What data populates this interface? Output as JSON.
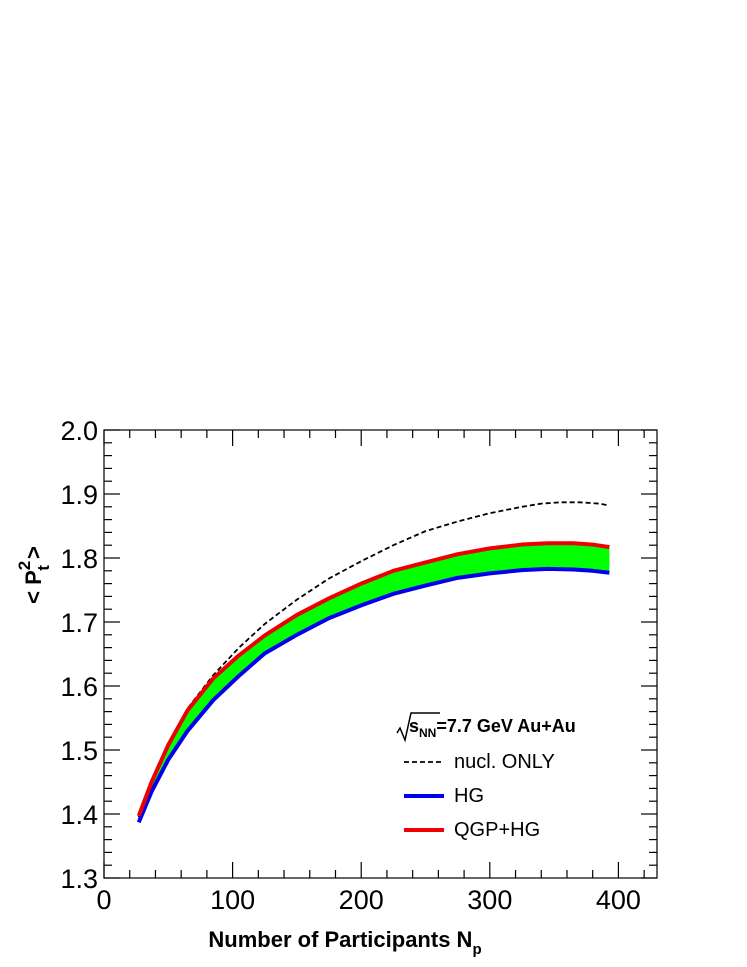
{
  "chart_data": {
    "type": "line",
    "title": "",
    "xlabel": "Number of Participants N",
    "xlabel_sub": "p",
    "ylabel_parts": [
      "< P",
      "2",
      "t",
      " >"
    ],
    "xlim": [
      0,
      430
    ],
    "ylim": [
      1.3,
      2.0
    ],
    "x_ticks": [
      "0",
      "100",
      "200",
      "300",
      "400"
    ],
    "y_ticks": [
      "1.3",
      "1.4",
      "1.5",
      "1.6",
      "1.7",
      "1.8",
      "1.9",
      "2.0"
    ],
    "grid": false,
    "legend_position": "bottom-right",
    "legend_header": {
      "s": "s",
      "sub": "NN",
      "rest": "=7.7 GeV Au+Au"
    },
    "series": [
      {
        "name": "nucl. ONLY",
        "style": "dashed",
        "color": "#000000",
        "x": [
          27,
          37,
          50,
          65,
          85,
          105,
          125,
          150,
          175,
          200,
          225,
          250,
          275,
          300,
          325,
          340,
          355,
          370,
          385,
          393
        ],
        "y": [
          1.395,
          1.45,
          1.51,
          1.565,
          1.617,
          1.66,
          1.697,
          1.735,
          1.768,
          1.795,
          1.82,
          1.842,
          1.857,
          1.87,
          1.88,
          1.885,
          1.887,
          1.887,
          1.885,
          1.882
        ]
      },
      {
        "name": "HG",
        "style": "solid",
        "color": "#0000ee",
        "x": [
          27,
          37,
          50,
          65,
          85,
          105,
          125,
          150,
          175,
          200,
          225,
          250,
          275,
          300,
          325,
          345,
          365,
          380,
          393
        ],
        "y": [
          1.387,
          1.435,
          1.485,
          1.53,
          1.578,
          1.616,
          1.651,
          1.68,
          1.706,
          1.726,
          1.744,
          1.757,
          1.769,
          1.776,
          1.781,
          1.783,
          1.782,
          1.78,
          1.777
        ]
      },
      {
        "name": "QGP+HG",
        "style": "solid",
        "color": "#ee0000",
        "x": [
          27,
          37,
          50,
          65,
          85,
          105,
          125,
          150,
          175,
          200,
          225,
          250,
          275,
          300,
          325,
          345,
          365,
          380,
          393
        ],
        "y": [
          1.397,
          1.45,
          1.508,
          1.562,
          1.612,
          1.648,
          1.679,
          1.711,
          1.737,
          1.76,
          1.78,
          1.793,
          1.806,
          1.815,
          1.821,
          1.823,
          1.823,
          1.821,
          1.817
        ]
      }
    ],
    "band": {
      "between": [
        "HG",
        "QGP+HG"
      ],
      "color": "#00ff00"
    }
  }
}
